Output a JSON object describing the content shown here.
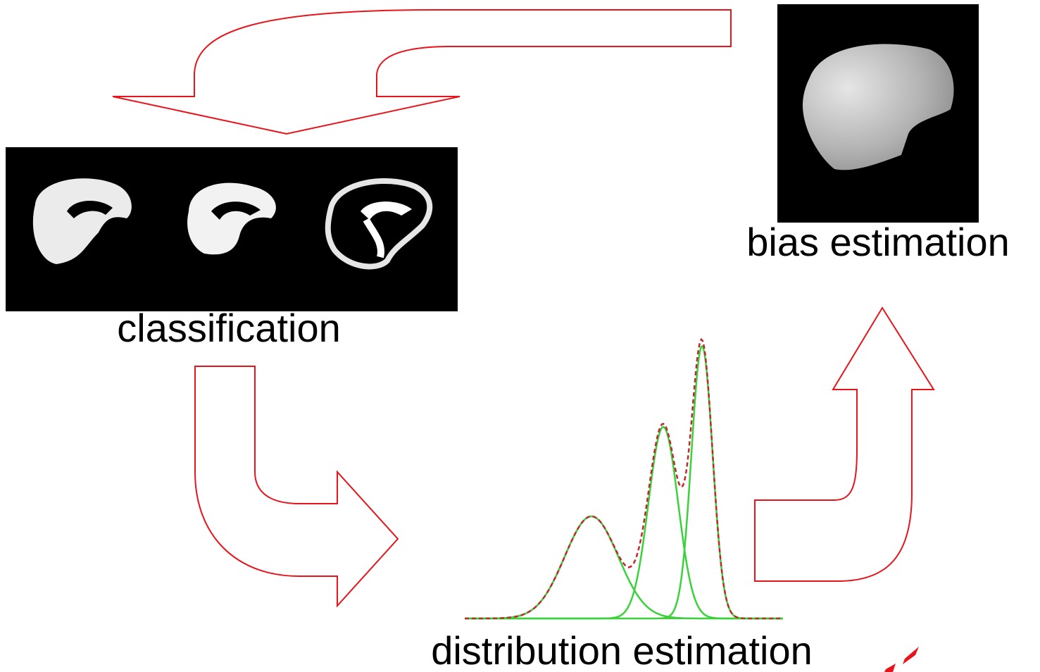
{
  "nodes": [
    {
      "label": "classification"
    },
    {
      "label": "distribution estimation"
    },
    {
      "label": "bias estimation"
    }
  ]
}
